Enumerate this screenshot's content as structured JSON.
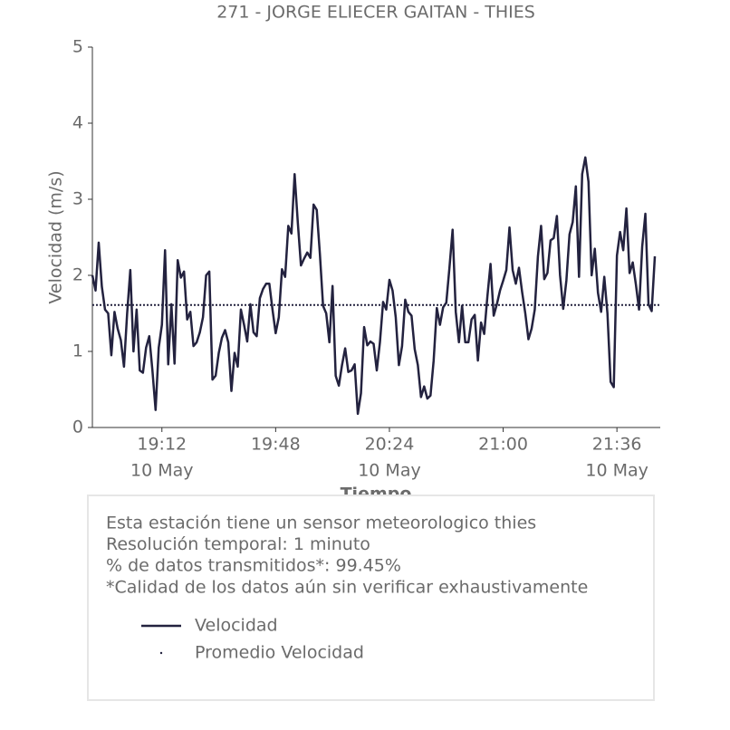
{
  "chart_data": {
    "type": "line",
    "title": "271 - JORGE ELIECER GAITAN - THIES",
    "xlabel": "Tiempo",
    "ylabel": "Velocidad (m/s)",
    "xlim": [
      "18:50",
      "21:50"
    ],
    "xticks": [
      "19:12",
      "19:48",
      "20:24",
      "21:00",
      "21:36"
    ],
    "xtick_sublabels": [
      {
        "value": "19:12",
        "label": "10 May"
      },
      {
        "value": "20:24",
        "label": "10 May"
      },
      {
        "value": "21:36",
        "label": "10 May"
      }
    ],
    "ylim": [
      0,
      5
    ],
    "yticks": [
      0,
      1,
      2,
      3,
      4,
      5
    ],
    "x": [
      "18:50",
      "18:51",
      "18:52",
      "18:53",
      "18:54",
      "18:55",
      "18:56",
      "18:57",
      "18:58",
      "18:59",
      "19:00",
      "19:01",
      "19:02",
      "19:03",
      "19:04",
      "19:05",
      "19:06",
      "19:07",
      "19:08",
      "19:09",
      "19:10",
      "19:11",
      "19:12",
      "19:13",
      "19:14",
      "19:15",
      "19:16",
      "19:17",
      "19:18",
      "19:19",
      "19:20",
      "19:21",
      "19:22",
      "19:23",
      "19:24",
      "19:25",
      "19:26",
      "19:27",
      "19:28",
      "19:29",
      "19:30",
      "19:31",
      "19:32",
      "19:33",
      "19:34",
      "19:35",
      "19:36",
      "19:37",
      "19:38",
      "19:39",
      "19:40",
      "19:41",
      "19:42",
      "19:43",
      "19:44",
      "19:45",
      "19:46",
      "19:47",
      "19:48",
      "19:49",
      "19:50",
      "19:51",
      "19:52",
      "19:53",
      "19:54",
      "19:55",
      "19:56",
      "19:57",
      "19:58",
      "19:59",
      "20:00",
      "20:01",
      "20:02",
      "20:03",
      "20:04",
      "20:05",
      "20:06",
      "20:07",
      "20:08",
      "20:09",
      "20:10",
      "20:11",
      "20:12",
      "20:13",
      "20:14",
      "20:15",
      "20:16",
      "20:17",
      "20:18",
      "20:19",
      "20:20",
      "20:21",
      "20:22",
      "20:23",
      "20:24",
      "20:25",
      "20:26",
      "20:27",
      "20:28",
      "20:29",
      "20:30",
      "20:31",
      "20:32",
      "20:33",
      "20:34",
      "20:35",
      "20:36",
      "20:37",
      "20:38",
      "20:39",
      "20:40",
      "20:41",
      "20:42",
      "20:43",
      "20:44",
      "20:45",
      "20:46",
      "20:47",
      "20:48",
      "20:49",
      "20:50",
      "20:51",
      "20:52",
      "20:53",
      "20:54",
      "20:55",
      "20:56",
      "20:57",
      "20:58",
      "20:59",
      "21:00",
      "21:01",
      "21:02",
      "21:03",
      "21:04",
      "21:05",
      "21:06",
      "21:07",
      "21:08",
      "21:09",
      "21:10",
      "21:11",
      "21:12",
      "21:13",
      "21:14",
      "21:15",
      "21:16",
      "21:17",
      "21:18",
      "21:19",
      "21:20",
      "21:21",
      "21:22",
      "21:23",
      "21:24",
      "21:25",
      "21:26",
      "21:27",
      "21:28",
      "21:29",
      "21:30",
      "21:31",
      "21:32",
      "21:33",
      "21:34",
      "21:35",
      "21:36",
      "21:37",
      "21:38",
      "21:39",
      "21:40",
      "21:41",
      "21:42",
      "21:43",
      "21:44",
      "21:45",
      "21:46",
      "21:47",
      "21:48"
    ],
    "series": [
      {
        "name": "Velocidad",
        "color": "#23223f",
        "values": [
          2.0,
          1.8,
          2.43,
          1.85,
          1.55,
          1.5,
          0.95,
          1.52,
          1.3,
          1.15,
          0.8,
          1.5,
          2.07,
          1.0,
          1.55,
          0.75,
          0.72,
          1.05,
          1.2,
          0.75,
          0.23,
          1.05,
          1.35,
          2.33,
          0.83,
          1.62,
          0.84,
          2.2,
          1.97,
          2.05,
          1.42,
          1.52,
          1.07,
          1.12,
          1.25,
          1.45,
          2.0,
          2.05,
          0.63,
          0.68,
          0.98,
          1.18,
          1.28,
          1.12,
          0.48,
          0.98,
          0.8,
          1.55,
          1.35,
          1.13,
          1.62,
          1.25,
          1.2,
          1.7,
          1.82,
          1.89,
          1.89,
          1.55,
          1.24,
          1.45,
          2.08,
          1.98,
          2.65,
          2.55,
          3.33,
          2.7,
          2.13,
          2.22,
          2.3,
          2.23,
          2.93,
          2.86,
          2.28,
          1.6,
          1.5,
          1.12,
          1.86,
          0.68,
          0.55,
          0.82,
          1.04,
          0.73,
          0.75,
          0.83,
          0.18,
          0.45,
          1.32,
          1.08,
          1.13,
          1.1,
          0.75,
          1.12,
          1.65,
          1.55,
          1.94,
          1.8,
          1.45,
          0.82,
          1.07,
          1.68,
          1.52,
          1.47,
          1.03,
          0.82,
          0.4,
          0.54,
          0.38,
          0.42,
          0.88,
          1.57,
          1.35,
          1.58,
          1.64,
          2.1,
          2.6,
          1.52,
          1.12,
          1.6,
          1.12,
          1.12,
          1.42,
          1.48,
          0.88,
          1.38,
          1.23,
          1.72,
          2.15,
          1.47,
          1.62,
          1.8,
          1.93,
          2.07,
          2.63,
          2.07,
          1.89,
          2.1,
          1.78,
          1.5,
          1.16,
          1.3,
          1.55,
          2.25,
          2.65,
          1.95,
          2.03,
          2.46,
          2.49,
          2.78,
          2.0,
          1.56,
          1.93,
          2.54,
          2.7,
          3.17,
          1.98,
          3.33,
          3.55,
          3.23,
          2.0,
          2.35,
          1.77,
          1.52,
          1.98,
          1.5,
          0.6,
          0.53,
          2.26,
          2.57,
          2.33,
          2.88,
          2.03,
          2.17,
          1.88,
          1.55,
          2.38,
          2.81,
          1.62,
          1.53,
          2.25
        ]
      }
    ],
    "mean_line": {
      "name": "Promedio Velocidad",
      "value": 1.61,
      "color": "#23223f"
    },
    "notes": [
      "Esta estación tiene un sensor meteorologico thies",
      "Resolución temporal: 1 minuto",
      "% de datos transmitidos*: 99.45%",
      "*Calidad de los datos aún sin verificar exhaustivamente"
    ]
  }
}
